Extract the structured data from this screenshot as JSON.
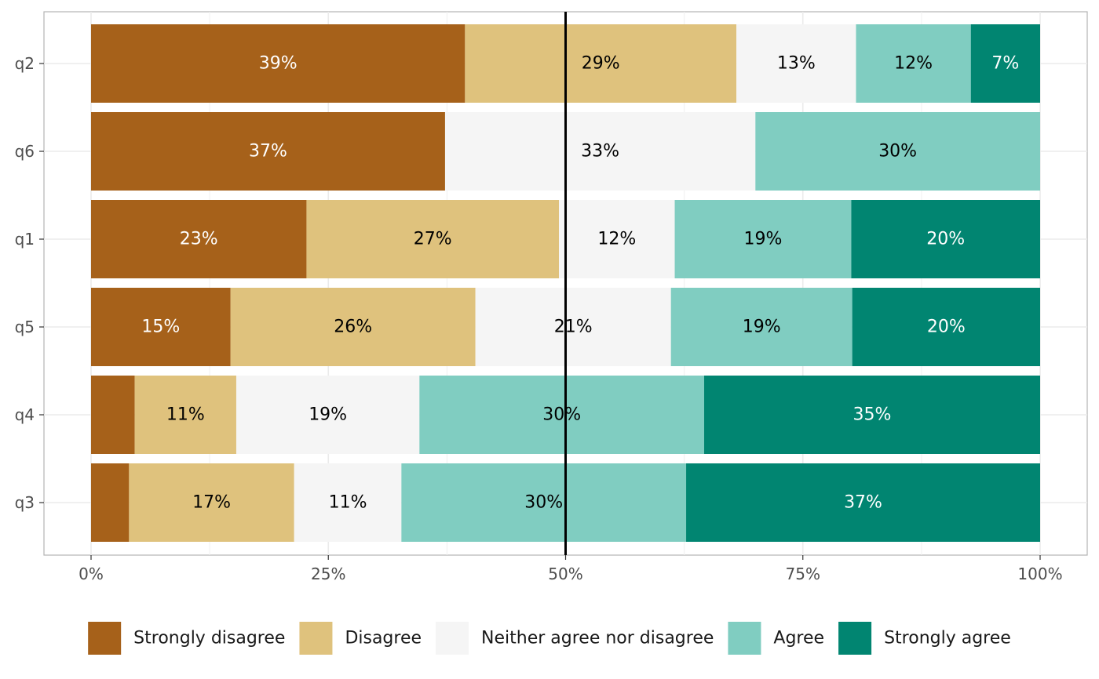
{
  "chart_data": {
    "type": "bar",
    "orientation": "horizontal",
    "stacked": true,
    "percent": true,
    "title": "",
    "xlabel": "",
    "ylabel": "",
    "xlim": [
      0,
      100
    ],
    "x_ticks": [
      0,
      25,
      50,
      75,
      100
    ],
    "x_tick_labels": [
      "0%",
      "25%",
      "50%",
      "75%",
      "100%"
    ],
    "reference_line": 50,
    "grid": true,
    "legend_position": "bottom",
    "categories": [
      "q2",
      "q6",
      "q1",
      "q5",
      "q4",
      "q3"
    ],
    "series": [
      {
        "name": "Strongly disagree",
        "color": "#a6611a",
        "label_color": "#ffffff",
        "values": [
          39.4,
          37.3,
          22.7,
          14.7,
          4.6,
          4.0
        ],
        "labels": [
          "39%",
          "37%",
          "23%",
          "15%",
          "",
          ""
        ]
      },
      {
        "name": "Disagree",
        "color": "#dfc27d",
        "label_color": "#000000",
        "values": [
          28.6,
          0,
          26.6,
          25.8,
          10.7,
          17.4
        ],
        "labels": [
          "29%",
          "",
          "27%",
          "26%",
          "11%",
          "17%"
        ]
      },
      {
        "name": "Neither agree nor disagree",
        "color": "#f5f5f5",
        "label_color": "#000000",
        "values": [
          12.6,
          32.7,
          12.2,
          20.6,
          19.3,
          11.3
        ],
        "labels": [
          "13%",
          "33%",
          "12%",
          "21%",
          "19%",
          "11%"
        ]
      },
      {
        "name": "Agree",
        "color": "#80cdc1",
        "label_color": "#000000",
        "values": [
          12.1,
          30.0,
          18.6,
          19.1,
          30.0,
          30.0
        ],
        "labels": [
          "12%",
          "",
          "19%",
          "19%",
          "30%",
          "30%"
        ]
      },
      {
        "name": "Strongly agree",
        "color": "#018571",
        "label_color": "#ffffff",
        "values": [
          7.3,
          0,
          19.9,
          19.8,
          35.4,
          37.3
        ],
        "labels": [
          "7%",
          "",
          "20%",
          "20%",
          "35%",
          "37%"
        ]
      }
    ],
    "extra_labels": [
      {
        "category": "q6",
        "series": "Agree",
        "text": "30%"
      }
    ]
  }
}
